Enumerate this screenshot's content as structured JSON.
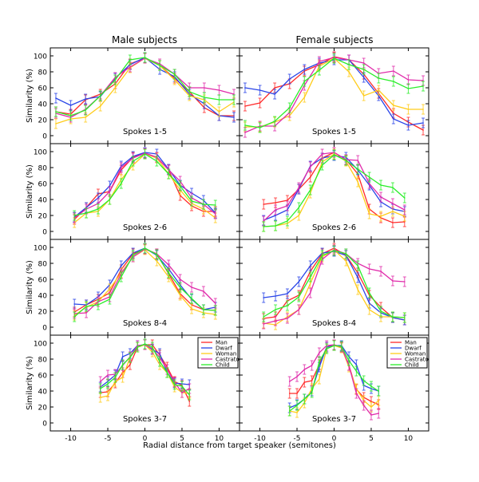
{
  "columns": [
    "Male subjects",
    "Female subjects"
  ],
  "ylabel": "Similarity (%)",
  "xlabel": "Radial distance from target speaker (semitones)",
  "legend": [
    {
      "name": "Man",
      "color": "#ff2a2a"
    },
    {
      "name": "Dwarf",
      "color": "#2a45e8"
    },
    {
      "name": "Woman",
      "color": "#ffcc1a"
    },
    {
      "name": "Castrato",
      "color": "#e02aaa"
    },
    {
      "name": "Child",
      "color": "#2aee2a"
    }
  ],
  "chart_data": [
    {
      "type": "line",
      "column": "Male subjects",
      "label": "Spokes 1-5",
      "xlim": [
        -12.75,
        12.75
      ],
      "ylim": [
        -10,
        110
      ],
      "xticks": [
        -10,
        -5,
        0,
        5,
        10
      ],
      "yticks": [
        0,
        20,
        40,
        60,
        80,
        100
      ],
      "grid": false,
      "x": [
        -12,
        -10,
        -8,
        -6,
        -4,
        -2,
        0,
        2,
        4,
        6,
        8,
        10,
        12
      ],
      "series": [
        {
          "name": "Man",
          "values": [
            30,
            27,
            45,
            52,
            65,
            90,
            97,
            88,
            72,
            55,
            35,
            25,
            25
          ]
        },
        {
          "name": "Dwarf",
          "values": [
            47,
            38,
            46,
            49,
            72,
            89,
            98,
            83,
            74,
            52,
            40,
            25,
            23
          ]
        },
        {
          "name": "Woman",
          "values": [
            15,
            21,
            23,
            37,
            60,
            85,
            97,
            88,
            70,
            50,
            45,
            30,
            42
          ]
        },
        {
          "name": "Castrato",
          "values": [
            28,
            23,
            33,
            50,
            73,
            86,
            97,
            90,
            77,
            60,
            60,
            57,
            52
          ]
        },
        {
          "name": "Child",
          "values": [
            30,
            25,
            32,
            50,
            70,
            95,
            98,
            88,
            77,
            55,
            48,
            45,
            45
          ]
        }
      ]
    },
    {
      "type": "line",
      "column": "Female subjects",
      "label": "Spokes 1-5",
      "xlim": [
        -12.75,
        12.75
      ],
      "ylim": [
        -10,
        110
      ],
      "xticks": [
        -10,
        -5,
        0,
        5,
        10
      ],
      "yticks": [
        0,
        20,
        40,
        60,
        80,
        100
      ],
      "grid": false,
      "x": [
        -12,
        -10,
        -8,
        -6,
        -4,
        -2,
        0,
        2,
        4,
        6,
        8,
        10,
        12
      ],
      "series": [
        {
          "name": "Man",
          "values": [
            37,
            41,
            60,
            65,
            81,
            89,
            99,
            95,
            77,
            53,
            28,
            17,
            7
          ]
        },
        {
          "name": "Dwarf",
          "values": [
            60,
            57,
            52,
            71,
            83,
            91,
            95,
            95,
            73,
            50,
            21,
            13,
            16
          ]
        },
        {
          "name": "Woman",
          "values": [
            11,
            11,
            17,
            25,
            48,
            87,
            97,
            80,
            50,
            57,
            38,
            33,
            33
          ]
        },
        {
          "name": "Castrato",
          "values": [
            4,
            12,
            12,
            29,
            63,
            93,
            98,
            95,
            91,
            78,
            81,
            70,
            69
          ]
        },
        {
          "name": "Child",
          "values": [
            13,
            10,
            18,
            35,
            68,
            82,
            97,
            89,
            83,
            72,
            68,
            59,
            62
          ]
        }
      ]
    },
    {
      "type": "line",
      "column": "Male subjects",
      "label": "Spokes 2-6",
      "xlim": [
        -12.75,
        12.75
      ],
      "ylim": [
        -10,
        110
      ],
      "xticks": [
        -10,
        -5,
        0,
        5,
        10
      ],
      "yticks": [
        0,
        20,
        40,
        60,
        80,
        100
      ],
      "grid": false,
      "x": [
        -9.5,
        -7.9,
        -6.3,
        -4.75,
        -3.2,
        -1.6,
        0,
        1.6,
        3.2,
        4.75,
        6.3,
        7.9,
        9.5
      ],
      "series": [
        {
          "name": "Man",
          "values": [
            15,
            30,
            47,
            50,
            77,
            93,
            98,
            93,
            77,
            45,
            32,
            25,
            25
          ]
        },
        {
          "name": "Dwarf",
          "values": [
            18,
            30,
            42,
            57,
            82,
            94,
            99,
            97,
            78,
            58,
            48,
            39,
            23
          ]
        },
        {
          "name": "Woman",
          "values": [
            11,
            23,
            25,
            40,
            65,
            83,
            97,
            92,
            72,
            52,
            35,
            28,
            17
          ]
        },
        {
          "name": "Castrato",
          "values": [
            17,
            28,
            35,
            50,
            80,
            92,
            98,
            93,
            77,
            63,
            42,
            34,
            22
          ]
        },
        {
          "name": "Child",
          "values": [
            20,
            23,
            28,
            40,
            60,
            88,
            97,
            88,
            72,
            57,
            38,
            34,
            33
          ]
        }
      ]
    },
    {
      "type": "line",
      "column": "Female subjects",
      "label": "Spokes 2-6",
      "xlim": [
        -12.75,
        12.75
      ],
      "ylim": [
        -10,
        110
      ],
      "xticks": [
        -10,
        -5,
        0,
        5,
        10
      ],
      "yticks": [
        0,
        20,
        40,
        60,
        80,
        100
      ],
      "grid": false,
      "x": [
        -9.5,
        -7.9,
        -6.3,
        -4.75,
        -3.2,
        -1.6,
        0,
        1.6,
        3.2,
        4.75,
        6.3,
        7.9,
        9.5
      ],
      "series": [
        {
          "name": "Man",
          "values": [
            34,
            36,
            39,
            53,
            68,
            92,
            99,
            90,
            72,
            28,
            17,
            11,
            12
          ]
        },
        {
          "name": "Dwarf",
          "values": [
            14,
            20,
            27,
            53,
            82,
            92,
            95,
            93,
            77,
            58,
            37,
            28,
            25
          ]
        },
        {
          "name": "Woman",
          "values": [
            6,
            7,
            10,
            20,
            48,
            87,
            97,
            88,
            62,
            22,
            19,
            25,
            19
          ]
        },
        {
          "name": "Castrato",
          "values": [
            13,
            27,
            32,
            55,
            81,
            97,
            99,
            90,
            89,
            60,
            43,
            35,
            27
          ]
        },
        {
          "name": "Child",
          "values": [
            6,
            7,
            13,
            30,
            52,
            83,
            96,
            89,
            78,
            68,
            58,
            55,
            42
          ]
        }
      ]
    },
    {
      "type": "line",
      "column": "Male subjects",
      "label": "Spokes 8-4",
      "xlim": [
        -12.75,
        12.75
      ],
      "ylim": [
        -10,
        110
      ],
      "xticks": [
        -10,
        -5,
        0,
        5,
        10
      ],
      "yticks": [
        0,
        20,
        40,
        60,
        80,
        100
      ],
      "grid": false,
      "x": [
        -9.5,
        -7.9,
        -6.3,
        -4.75,
        -3.2,
        -1.6,
        0,
        1.6,
        3.2,
        4.75,
        6.3,
        7.9,
        9.5
      ],
      "series": [
        {
          "name": "Man",
          "values": [
            19,
            28,
            35,
            43,
            72,
            92,
            98,
            92,
            67,
            42,
            28,
            22,
            21
          ]
        },
        {
          "name": "Dwarf",
          "values": [
            29,
            28,
            38,
            53,
            77,
            93,
            99,
            90,
            73,
            53,
            35,
            22,
            25
          ]
        },
        {
          "name": "Woman",
          "values": [
            15,
            25,
            32,
            48,
            68,
            88,
            97,
            83,
            63,
            40,
            23,
            18,
            16
          ]
        },
        {
          "name": "Castrato",
          "values": [
            17,
            18,
            32,
            38,
            67,
            88,
            98,
            92,
            78,
            60,
            50,
            45,
            30
          ]
        },
        {
          "name": "Child",
          "values": [
            13,
            26,
            28,
            35,
            63,
            90,
            99,
            91,
            68,
            50,
            36,
            22,
            21
          ]
        }
      ]
    },
    {
      "type": "line",
      "column": "Female subjects",
      "label": "Spokes 8-4",
      "xlim": [
        -12.75,
        12.75
      ],
      "ylim": [
        -10,
        110
      ],
      "xticks": [
        -10,
        -5,
        0,
        5,
        10
      ],
      "yticks": [
        0,
        20,
        40,
        60,
        80,
        100
      ],
      "grid": false,
      "x": [
        -9.5,
        -7.9,
        -6.3,
        -4.75,
        -3.2,
        -1.6,
        0,
        1.6,
        3.2,
        4.75,
        6.3,
        7.9,
        9.5
      ],
      "series": [
        {
          "name": "Man",
          "values": [
            11,
            13,
            33,
            40,
            70,
            92,
            99,
            90,
            68,
            40,
            25,
            12,
            9
          ]
        },
        {
          "name": "Dwarf",
          "values": [
            37,
            39,
            42,
            57,
            77,
            93,
            95,
            90,
            62,
            30,
            18,
            12,
            9
          ]
        },
        {
          "name": "Woman",
          "values": [
            5,
            3,
            13,
            22,
            55,
            88,
            97,
            83,
            47,
            22,
            13,
            13,
            12
          ]
        },
        {
          "name": "Castrato",
          "values": [
            4,
            8,
            11,
            22,
            43,
            85,
            97,
            92,
            80,
            73,
            70,
            58,
            57
          ]
        },
        {
          "name": "Child",
          "values": [
            13,
            22,
            27,
            38,
            63,
            90,
            96,
            92,
            77,
            43,
            20,
            13,
            12
          ]
        }
      ]
    },
    {
      "type": "line",
      "column": "Male subjects",
      "label": "Spokes 3-7",
      "xlim": [
        -12.75,
        12.75
      ],
      "ylim": [
        -10,
        110
      ],
      "xticks": [
        -10,
        -5,
        0,
        5,
        10
      ],
      "yticks": [
        0,
        20,
        40,
        60,
        80,
        100
      ],
      "grid": false,
      "x": [
        -6,
        -5,
        -4,
        -3,
        -2,
        -1,
        0,
        1,
        2,
        3,
        4,
        5,
        6
      ],
      "series": [
        {
          "name": "Man",
          "values": [
            38,
            39,
            50,
            63,
            73,
            95,
            98,
            98,
            85,
            70,
            52,
            47,
            27
          ]
        },
        {
          "name": "Dwarf",
          "values": [
            45,
            52,
            60,
            83,
            87,
            97,
            98,
            92,
            87,
            63,
            50,
            49,
            48
          ]
        },
        {
          "name": "Woman",
          "values": [
            32,
            34,
            52,
            57,
            82,
            95,
            98,
            89,
            73,
            63,
            45,
            38,
            37
          ]
        },
        {
          "name": "Castrato",
          "values": [
            52,
            60,
            61,
            72,
            83,
            97,
            98,
            93,
            82,
            67,
            51,
            38,
            43
          ]
        },
        {
          "name": "Child",
          "values": [
            43,
            49,
            57,
            73,
            82,
            95,
            99,
            95,
            77,
            63,
            48,
            46,
            35
          ]
        }
      ]
    },
    {
      "type": "line",
      "column": "Female subjects",
      "label": "Spokes 3-7",
      "xlim": [
        -12.75,
        12.75
      ],
      "ylim": [
        -10,
        110
      ],
      "xticks": [
        -10,
        -5,
        0,
        5,
        10
      ],
      "yticks": [
        0,
        20,
        40,
        60,
        80,
        100
      ],
      "grid": false,
      "x": [
        -6,
        -5,
        -4,
        -3,
        -2,
        -1,
        0,
        1,
        2,
        3,
        4,
        5,
        6
      ],
      "series": [
        {
          "name": "Man",
          "values": [
            37,
            37,
            51,
            53,
            73,
            95,
            98,
            95,
            72,
            42,
            32,
            27,
            23
          ]
        },
        {
          "name": "Dwarf",
          "values": [
            19,
            23,
            30,
            40,
            70,
            95,
            97,
            97,
            83,
            73,
            47,
            43,
            40
          ]
        },
        {
          "name": "Woman",
          "values": [
            15,
            13,
            25,
            43,
            55,
            93,
            97,
            94,
            70,
            43,
            28,
            20,
            28
          ]
        },
        {
          "name": "Castrato",
          "values": [
            52,
            58,
            67,
            72,
            88,
            97,
            98,
            95,
            72,
            37,
            22,
            10,
            12
          ]
        },
        {
          "name": "Child",
          "values": [
            15,
            22,
            30,
            38,
            77,
            93,
            97,
            96,
            78,
            65,
            53,
            46,
            40
          ]
        }
      ]
    }
  ]
}
